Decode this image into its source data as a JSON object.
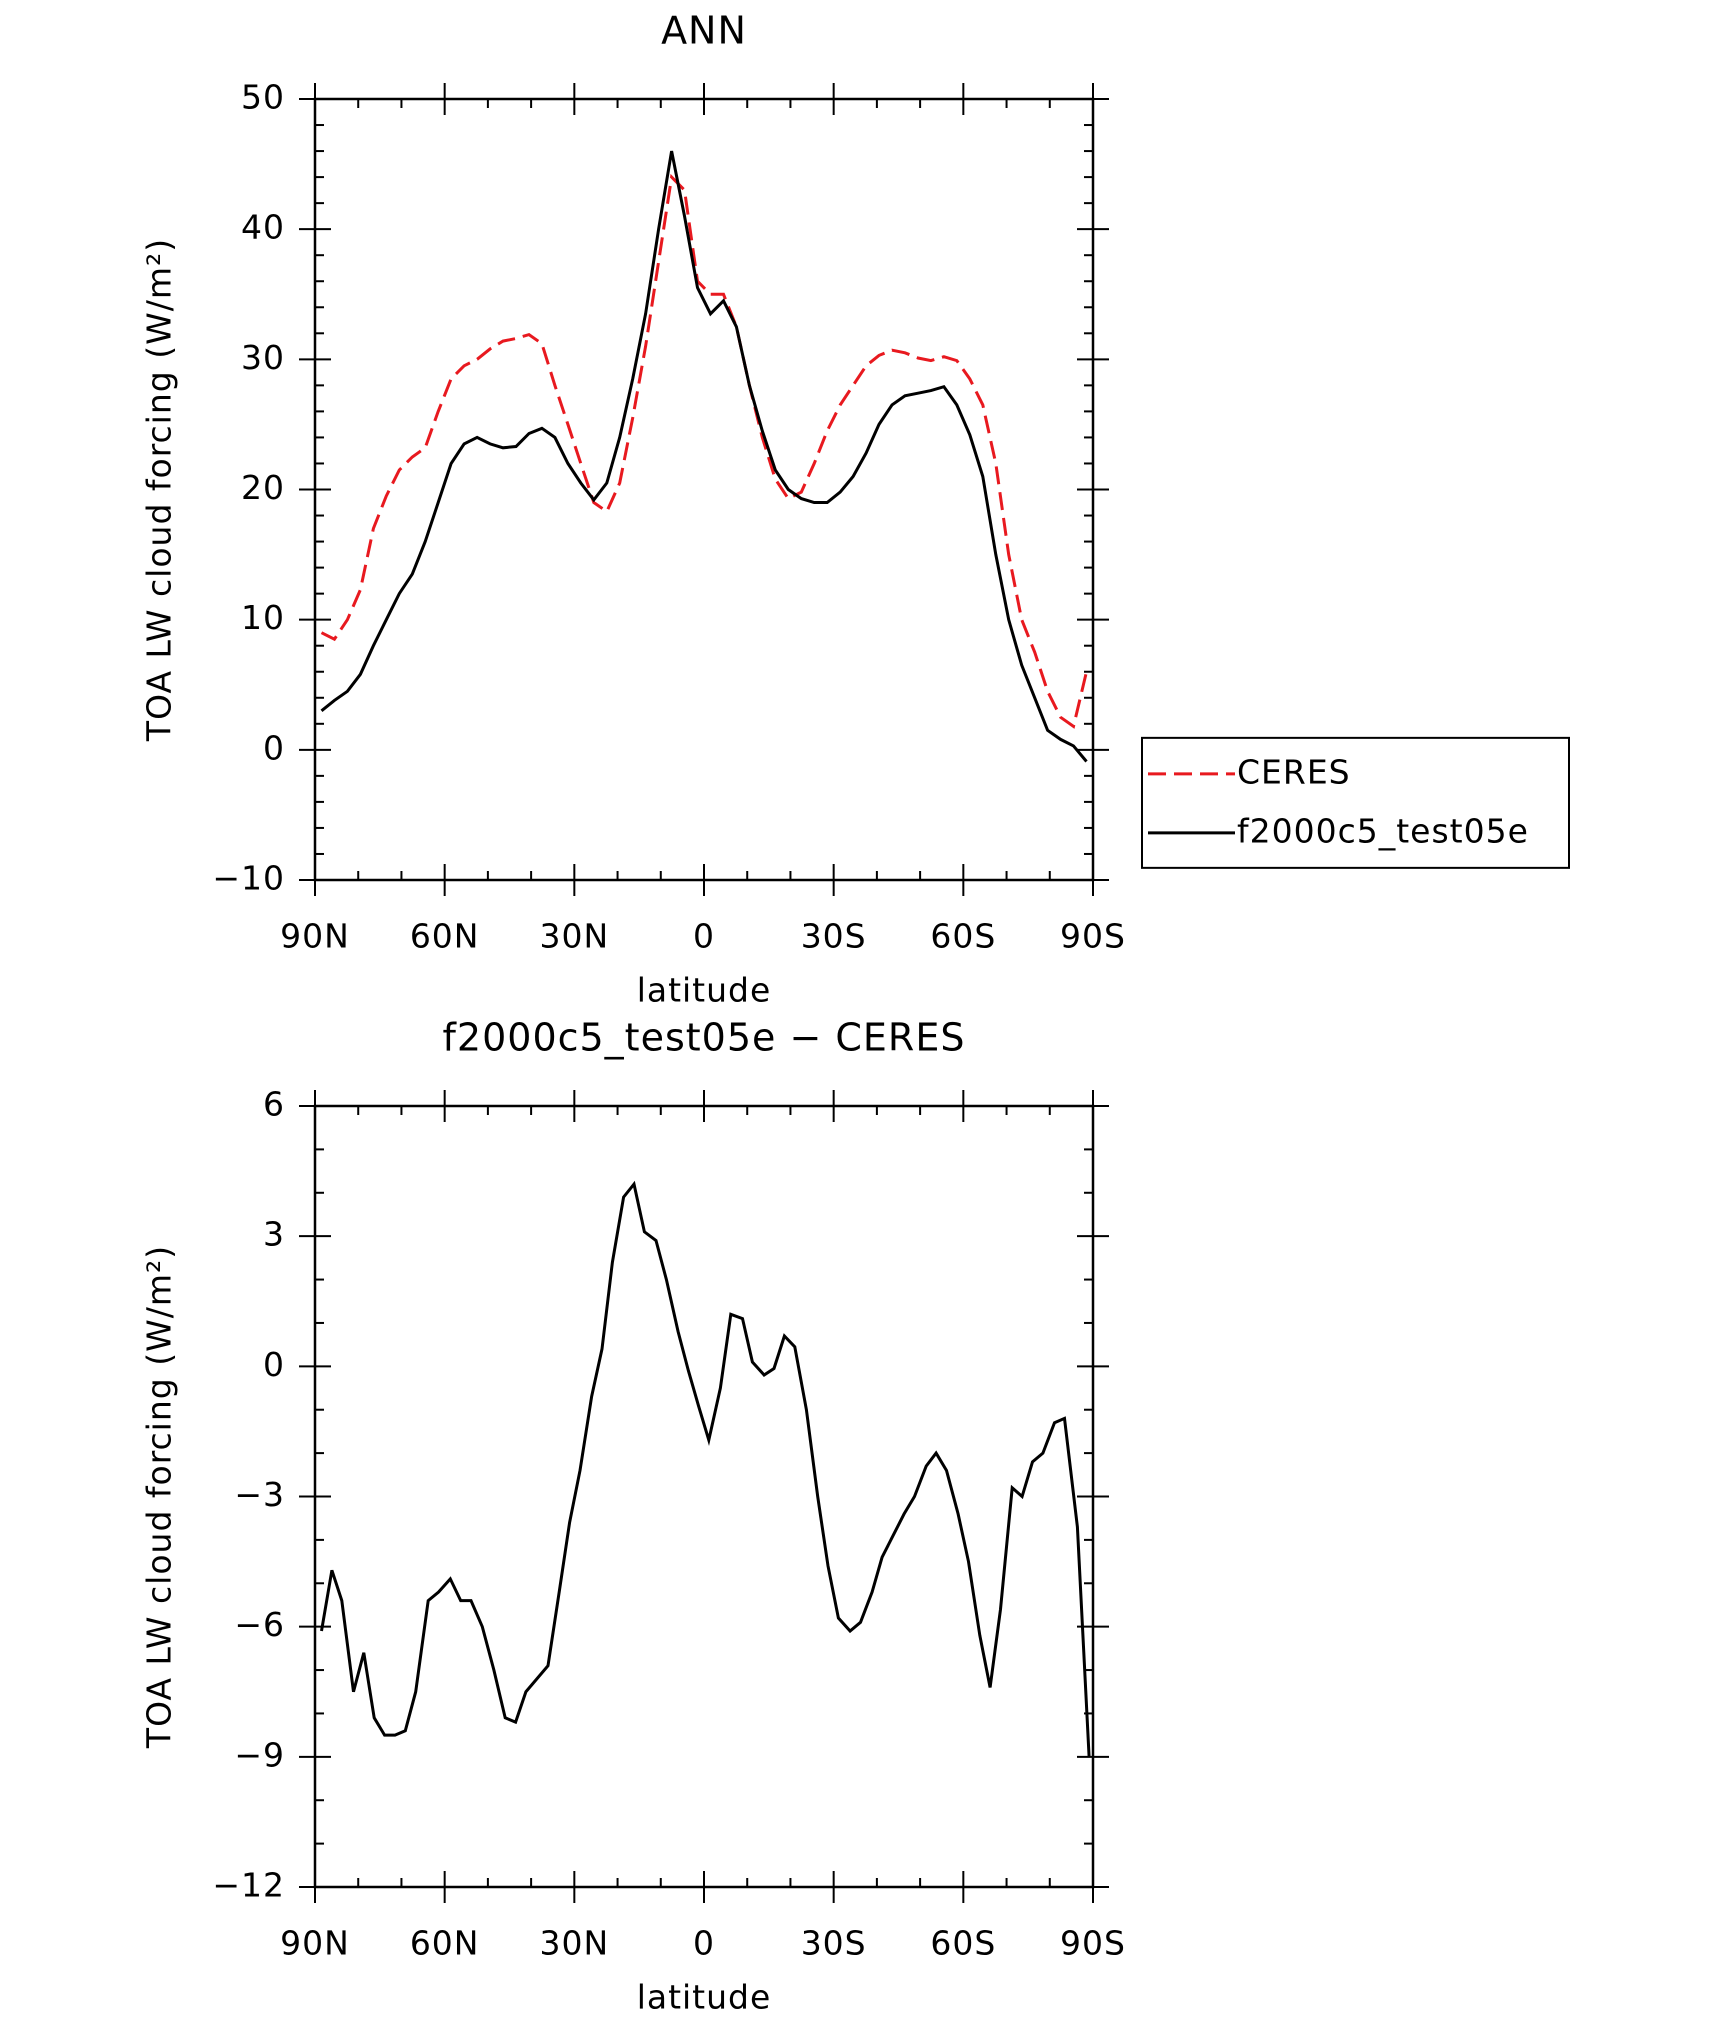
{
  "chart_data": [
    {
      "type": "line",
      "title": "ANN",
      "xlabel": "latitude",
      "ylabel": "TOA LW cloud forcing (W/m²)",
      "x": [
        88.5,
        85.5,
        82.5,
        79.5,
        76.5,
        73.5,
        70.5,
        67.5,
        64.5,
        61.5,
        58.5,
        55.5,
        52.5,
        49.5,
        46.5,
        43.5,
        40.5,
        37.5,
        34.5,
        31.5,
        28.5,
        25.5,
        22.5,
        19.5,
        16.5,
        13.5,
        10.5,
        7.5,
        4.5,
        1.5,
        -1.5,
        -4.5,
        -7.5,
        -10.5,
        -13.5,
        -16.5,
        -19.5,
        -22.5,
        -25.5,
        -28.5,
        -31.5,
        -34.5,
        -37.5,
        -40.5,
        -43.5,
        -46.5,
        -49.5,
        -52.5,
        -55.5,
        -58.5,
        -61.5,
        -64.5,
        -67.5,
        -70.5,
        -73.5,
        -76.5,
        -79.5,
        -82.5,
        -85.5,
        -88.5
      ],
      "series": [
        {
          "name": "CERES",
          "color": "#e8191f",
          "dash": true,
          "values": [
            9,
            8.5,
            10,
            12.3,
            17,
            19.5,
            21.5,
            22.5,
            23.2,
            26,
            28.5,
            29.5,
            30,
            30.8,
            31.4,
            31.6,
            31.9,
            31.2,
            28,
            25,
            22,
            19,
            18.3,
            20.5,
            25.5,
            31,
            37.5,
            44,
            43,
            36,
            35,
            35,
            32.5,
            28,
            24,
            20.8,
            19.3,
            19.8,
            22,
            24.5,
            26.5,
            28,
            29.5,
            30.3,
            30.7,
            30.5,
            30.1,
            29.9,
            30.2,
            29.9,
            28.5,
            26.5,
            22,
            15,
            10,
            7.5,
            4.5,
            2.5,
            1.8,
            6
          ]
        },
        {
          "name": "f2000c5_test05e",
          "color": "#000000",
          "dash": false,
          "values": [
            3,
            3.8,
            4.5,
            5.8,
            8,
            10,
            12,
            13.5,
            16,
            19,
            22,
            23.5,
            24,
            23.5,
            23.2,
            23.3,
            24.3,
            24.7,
            24,
            22,
            20.5,
            19.2,
            20.5,
            24,
            28.5,
            33.5,
            40,
            46,
            41,
            35.5,
            33.5,
            34.5,
            32.5,
            28,
            24.5,
            21.5,
            20,
            19.3,
            19,
            19,
            19.8,
            21,
            22.8,
            25,
            26.5,
            27.2,
            27.4,
            27.6,
            27.9,
            26.5,
            24.2,
            21,
            15,
            10,
            6.5,
            4,
            1.5,
            0.8,
            0.3,
            -0.9
          ]
        }
      ],
      "xlim": [
        90,
        -90
      ],
      "xticks": [
        {
          "value": 90,
          "label": "90N"
        },
        {
          "value": 60,
          "label": "60N"
        },
        {
          "value": 30,
          "label": "30N"
        },
        0,
        {
          "value": -30,
          "label": "30S"
        },
        {
          "value": -60,
          "label": "60S"
        },
        {
          "value": -90,
          "label": "90S"
        }
      ],
      "ylim": [
        -10,
        50
      ],
      "yticks": [
        {
          "value": -10,
          "label": "−10"
        },
        0,
        10,
        20,
        30,
        40,
        50
      ],
      "legend": "right"
    },
    {
      "type": "line",
      "title": "f2000c5_test05e − CERES",
      "xlabel": "latitude",
      "ylabel": "TOA LW cloud forcing (W/m²)",
      "x": [
        88.5,
        86.1,
        83.8,
        81.1,
        78.7,
        76.3,
        73.9,
        71.5,
        69.1,
        66.7,
        63.8,
        61.4,
        58.7,
        56.3,
        53.9,
        51.3,
        48.6,
        46.0,
        43.6,
        41.2,
        36.1,
        33.5,
        31.1,
        28.7,
        26.0,
        23.6,
        21.2,
        18.6,
        16.2,
        13.8,
        11.1,
        8.7,
        6.0,
        3.6,
        1.3,
        -1.1,
        -3.8,
        -6.2,
        -8.9,
        -11.2,
        -13.9,
        -16.2,
        -18.6,
        -21.0,
        -23.7,
        -26.3,
        -28.7,
        -31.1,
        -33.8,
        -36.2,
        -38.9,
        -41.2,
        -46.3,
        -48.7,
        -51.4,
        -53.7,
        -56.1,
        -58.8,
        -61.2,
        -63.8,
        -66.2,
        -68.6,
        -71.3,
        -73.6,
        -76.0,
        -78.4,
        -81.1,
        -83.4,
        -86.4,
        -89.1
      ],
      "series": [
        {
          "color": "#000000",
          "dash": false,
          "values": [
            -6.1,
            -4.7,
            -5.4,
            -7.5,
            -6.6,
            -8.1,
            -8.5,
            -8.5,
            -8.4,
            -7.5,
            -5.4,
            -5.2,
            -4.9,
            -5.4,
            -5.4,
            -6,
            -7,
            -8.1,
            -8.2,
            -7.5,
            -6.9,
            -5.2,
            -3.6,
            -2.4,
            -0.7,
            0.4,
            2.4,
            3.9,
            4.2,
            3.1,
            2.9,
            2,
            0.8,
            -0.1,
            -0.9,
            -1.7,
            -0.5,
            1.2,
            1.1,
            0.1,
            -0.2,
            -0.05,
            0.7,
            0.45,
            -1,
            -3,
            -4.6,
            -5.8,
            -6.1,
            -5.9,
            -5.2,
            -4.4,
            -3.4,
            -3,
            -2.3,
            -2,
            -2.4,
            -3.4,
            -4.5,
            -6.2,
            -7.4,
            -5.6,
            -2.8,
            -3,
            -2.2,
            -2,
            -1.3,
            -1.2,
            -3.7,
            -9
          ]
        }
      ],
      "xlim": [
        90,
        -90
      ],
      "xticks": [
        {
          "value": 90,
          "label": "90N"
        },
        {
          "value": 60,
          "label": "60N"
        },
        {
          "value": 30,
          "label": "30N"
        },
        0,
        {
          "value": -30,
          "label": "30S"
        },
        {
          "value": -60,
          "label": "60S"
        },
        {
          "value": -90,
          "label": "90S"
        }
      ],
      "ylim": [
        -12,
        6
      ],
      "yticks": [
        {
          "value": -12,
          "label": "−12"
        },
        {
          "value": -9,
          "label": "−9"
        },
        {
          "value": -6,
          "label": "−6"
        },
        {
          "value": -3,
          "label": "−3"
        },
        0,
        3,
        6
      ]
    }
  ]
}
